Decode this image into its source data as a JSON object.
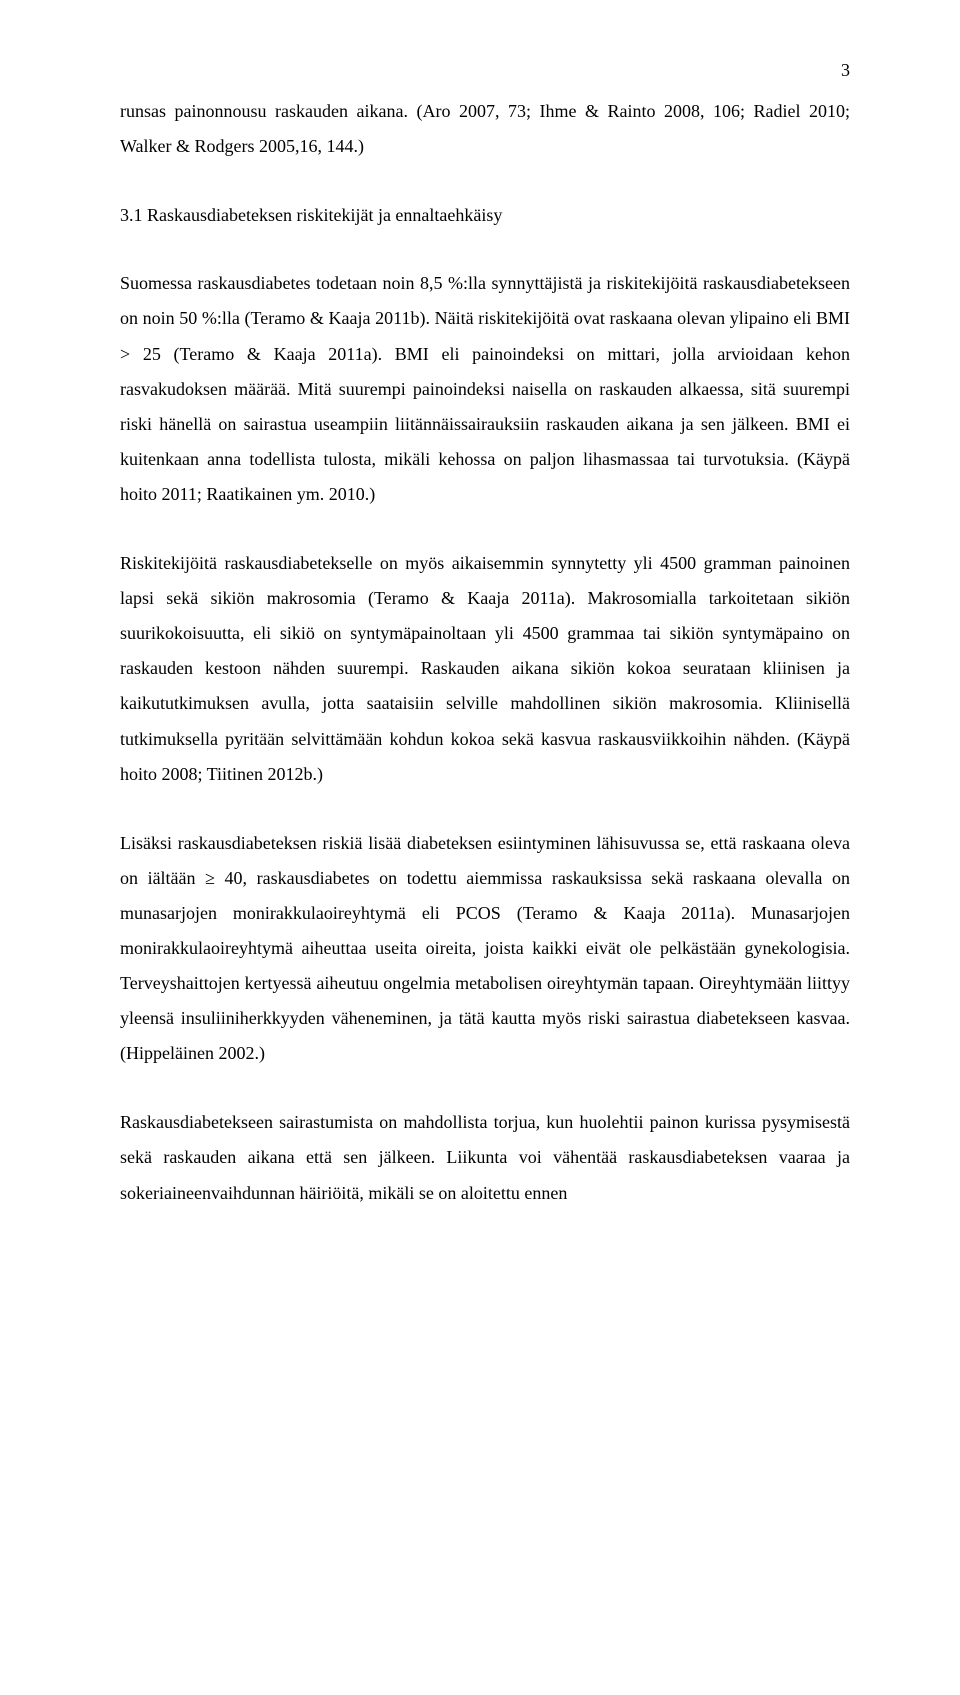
{
  "page_number": "3",
  "p1": "runsas painonnousu raskauden aikana. (Aro 2007, 73; Ihme & Rainto 2008, 106; Ra­diel 2010; Walker & Rodgers 2005,16, 144.)",
  "heading": "3.1 Raskausdiabeteksen riskitekijät ja ennaltaehkäisy",
  "p2": "Suomessa raskausdiabetes todetaan noin 8,5 %:lla synnyttäjistä ja riskitekijöitä ras­kausdiabetekseen on noin 50 %:lla (Teramo & Kaaja 2011b). Näitä riskitekijöitä ovat raskaana olevan ylipaino eli BMI > 25 (Teramo & Kaaja 2011a). BMI eli painoindeksi on mittari, jolla arvioidaan kehon rasvakudoksen määrää. Mitä suurempi painoindeksi naisella on raskauden alkaessa, sitä suurempi riski hänellä on sairastua useampiin lii­tännäissairauksiin raskauden aikana ja sen jälkeen. BMI ei kuitenkaan anna todellista tulosta, mikäli kehossa on paljon lihasmassaa tai turvotuksia. (Käypä hoito 2011; Raa­tikainen ym. 2010.)",
  "p3": "Riskitekijöitä raskausdiabetekselle on myös aikaisemmin synnytetty yli 4500 gram­man painoinen lapsi sekä sikiön makrosomia (Teramo & Kaaja 2011a). Makrosomial­la tarkoitetaan sikiön suurikokoisuutta, eli sikiö on syntymäpainoltaan yli 4500 gram­maa tai sikiön syntymäpaino on raskauden kestoon nähden suurempi. Raskauden ai­kana sikiön kokoa seurataan kliinisen ja kaikututkimuksen avulla, jotta saataisiin sel­ville mahdollinen sikiön makrosomia. Kliinisellä tutkimuksella pyritään selvittämään kohdun kokoa sekä kasvua raskausviikkoihin nähden. (Käypä hoito 2008; Tiitinen 2012b.)",
  "p4": "Lisäksi raskausdiabeteksen riskiä lisää diabeteksen esiintyminen lähisuvussa se, että raskaana oleva on iältään ≥ 40, raskausdiabetes on todettu aiemmissa raskauksissa sekä raskaana olevalla on munasarjojen monirakkulaoireyhtymä eli PCOS (Teramo & Kaaja 2011a).  Munasarjojen monirakkulaoireyhtymä aiheuttaa useita oireita, joista kaikki eivät ole pelkästään gynekologisia. Terveyshaittojen kertyessä aiheutuu ongel­mia metabolisen oireyhtymän tapaan. Oireyhtymään liittyy yleensä insuliiniherkkyy­den väheneminen, ja tätä kautta myös riski sairastua diabetekseen kasvaa. (Hippeläi­nen 2002.)",
  "p5": "Raskausdiabetekseen sairastumista on mahdollista torjua, kun huolehtii painon kurissa pysymisestä sekä raskauden aikana että sen jälkeen. Liikunta voi vähentää raskaus­diabeteksen vaaraa ja sokeriaineenvaihdunnan häiriöitä, mikäli se on aloitettu ennen"
}
